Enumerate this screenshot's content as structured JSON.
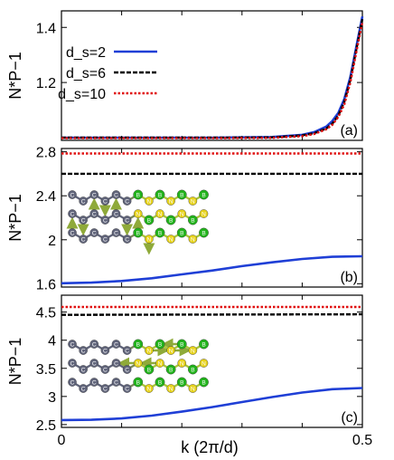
{
  "chart_data": {
    "type": "line",
    "xlabel": "k (2π/d)",
    "xlim": [
      0,
      0.5
    ],
    "x_ticks": [
      "0",
      "0.5"
    ],
    "legend_placement": "top-left",
    "legend": [
      {
        "name": "d_s=2",
        "color": "#1f3fd6",
        "dash": "solid"
      },
      {
        "name": "d_s=6",
        "color": "#000000",
        "dash": "dashed"
      },
      {
        "name": "d_s=10",
        "color": "#e01010",
        "dash": "dotted"
      }
    ],
    "panels": [
      {
        "id": "a",
        "panel_label": "(a)",
        "ylabel": "N*P−1",
        "ylim": [
          0.99,
          1.46
        ],
        "yticks": [
          1.2,
          1.4
        ],
        "ytick_labels": [
          "1.2",
          "1.4"
        ],
        "series": [
          {
            "name": "d_s=2",
            "x": [
              0,
              0.25,
              0.35,
              0.4,
              0.42,
              0.44,
              0.45,
              0.46,
              0.47,
              0.48,
              0.49,
              0.5
            ],
            "y": [
              1.0,
              1.0,
              1.002,
              1.01,
              1.02,
              1.04,
              1.06,
              1.09,
              1.14,
              1.22,
              1.33,
              1.44
            ]
          },
          {
            "name": "d_s=6",
            "x": [
              0,
              0.25,
              0.35,
              0.4,
              0.42,
              0.44,
              0.45,
              0.46,
              0.47,
              0.48,
              0.49,
              0.5
            ],
            "y": [
              1.0,
              1.0,
              1.001,
              1.008,
              1.016,
              1.033,
              1.05,
              1.08,
              1.13,
              1.21,
              1.32,
              1.43
            ]
          },
          {
            "name": "d_s=10",
            "x": [
              0,
              0.25,
              0.35,
              0.4,
              0.42,
              0.44,
              0.45,
              0.46,
              0.47,
              0.48,
              0.49,
              0.5
            ],
            "y": [
              0.998,
              0.998,
              0.999,
              1.005,
              1.013,
              1.03,
              1.046,
              1.075,
              1.12,
              1.2,
              1.31,
              1.42
            ]
          }
        ]
      },
      {
        "id": "b",
        "panel_label": "(b)",
        "ylabel": "N*P−1",
        "ylim": [
          1.57,
          2.83
        ],
        "yticks": [
          1.6,
          2,
          2.4,
          2.8
        ],
        "ytick_labels": [
          "1.6",
          "2",
          "2.4",
          "2.8"
        ],
        "series": [
          {
            "name": "d_s=2",
            "x": [
              0,
              0.05,
              0.1,
              0.15,
              0.2,
              0.25,
              0.3,
              0.35,
              0.4,
              0.45,
              0.5
            ],
            "y": [
              1.605,
              1.61,
              1.625,
              1.65,
              1.685,
              1.72,
              1.76,
              1.795,
              1.825,
              1.845,
              1.85
            ]
          },
          {
            "name": "d_s=6",
            "x": [
              0,
              0.5
            ],
            "y": [
              2.6,
              2.6
            ]
          },
          {
            "name": "d_s=10",
            "x": [
              0,
              0.5
            ],
            "y": [
              2.785,
              2.785
            ]
          }
        ]
      },
      {
        "id": "c",
        "panel_label": "(c)",
        "ylabel": "N*P−1",
        "ylim": [
          2.45,
          4.8
        ],
        "yticks": [
          2.5,
          3,
          3.5,
          4,
          4.5
        ],
        "ytick_labels": [
          "2.5",
          "3",
          "3.5",
          "4",
          "4.5"
        ],
        "series": [
          {
            "name": "d_s=2",
            "x": [
              0,
              0.05,
              0.1,
              0.15,
              0.2,
              0.25,
              0.3,
              0.35,
              0.4,
              0.45,
              0.5
            ],
            "y": [
              2.58,
              2.585,
              2.61,
              2.66,
              2.73,
              2.81,
              2.9,
              2.99,
              3.07,
              3.13,
              3.15
            ]
          },
          {
            "name": "d_s=6",
            "x": [
              0,
              0.5
            ],
            "y": [
              4.45,
              4.46
            ]
          },
          {
            "name": "d_s=10",
            "x": [
              0,
              0.5
            ],
            "y": [
              4.59,
              4.59
            ]
          }
        ]
      }
    ],
    "insets": {
      "atom_label_c": "C",
      "atom_label_n": "N",
      "atom_label_b": "B",
      "carbon_color": "#60647a",
      "nitrogen_color": "#e6d21a",
      "boron_color": "#22b31c",
      "arrow_color": "#8faa3a"
    }
  }
}
